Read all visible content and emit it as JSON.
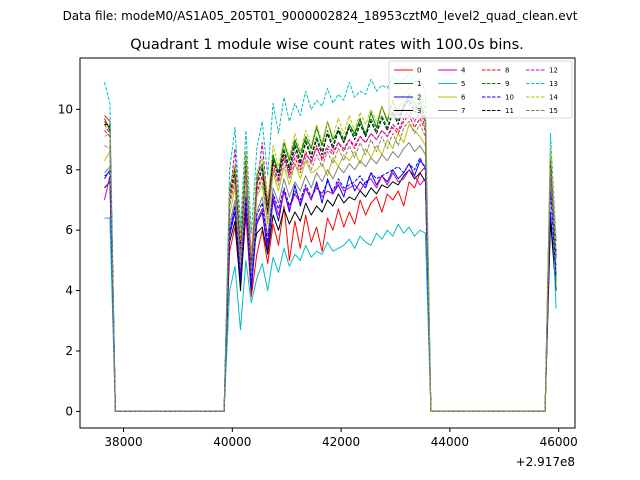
{
  "header": {
    "suptitle": "Data file: modeM0/AS1A05_205T01_9000002824_18953cztM0_level2_quad_clean.evt"
  },
  "chart_data": {
    "type": "line",
    "title": "Quadrant 1 module wise count rates with 100.0s bins.",
    "xlabel": "",
    "ylabel": "",
    "x_offset_label": "+2.917e8",
    "xlim": [
      37200,
      46300
    ],
    "ylim": [
      -0.55,
      11.7
    ],
    "x_ticks": [
      38000,
      40000,
      42000,
      44000,
      46000
    ],
    "x_tick_labels": [
      "38000",
      "40000",
      "42000",
      "44000",
      "46000"
    ],
    "y_ticks": [
      0,
      2,
      4,
      6,
      8,
      10
    ],
    "y_tick_labels": [
      "0",
      "2",
      "4",
      "6",
      "8",
      "10"
    ],
    "legend": {
      "placement": "top-right",
      "columns": 4
    },
    "segments": [
      {
        "x_start": 37650,
        "x_end": 37850,
        "x_step": 100
      },
      {
        "x_start": 37850,
        "x_end": 39850,
        "x_step": 100,
        "note": "zero gap"
      },
      {
        "x_start": 39850,
        "x_end": 43550,
        "x_step": 100
      },
      {
        "x_start": 43550,
        "x_end": 45750,
        "x_step": 100,
        "note": "zero gap"
      },
      {
        "x_start": 45750,
        "x_end": 45950,
        "x_step": 100
      }
    ],
    "series": [
      {
        "name": "0",
        "color": "#ff0000",
        "style": "solid",
        "start": [
          9.8,
          9.6,
          0.0
        ],
        "mid": [
          0.0,
          5.3,
          6.1,
          4.2,
          6.5,
          3.8,
          5.2,
          6.0,
          4.9,
          6.2,
          5.5,
          6.8,
          5.0,
          6.3,
          5.4,
          6.5,
          5.6,
          6.1,
          5.3,
          6.4,
          6.0,
          6.7,
          6.1,
          6.6,
          6.2,
          7.0,
          6.5,
          6.9,
          7.1,
          6.6,
          7.2,
          7.0,
          7.3,
          6.8,
          7.6,
          7.4,
          7.9,
          8.1,
          0.0
        ],
        "end": [
          0.0,
          8.3,
          4.0
        ]
      },
      {
        "name": "1",
        "color": "#008000",
        "style": "solid",
        "start": [
          9.7,
          9.3,
          0.0
        ],
        "mid": [
          0.0,
          7.4,
          8.1,
          5.6,
          8.6,
          4.9,
          7.8,
          8.2,
          6.8,
          8.5,
          7.9,
          8.9,
          8.3,
          9.0,
          8.5,
          9.1,
          8.7,
          9.4,
          8.8,
          9.6,
          9.0,
          9.3,
          8.9,
          9.5,
          9.2,
          9.7,
          9.1,
          9.9,
          9.4,
          10.1,
          9.6,
          10.3,
          9.8,
          10.0,
          10.5,
          10.2,
          9.9,
          9.6,
          0.0
        ],
        "end": [
          0.0,
          8.6,
          4.3
        ]
      },
      {
        "name": "2",
        "color": "#0000ff",
        "style": "solid",
        "start": [
          7.7,
          8.0,
          0.0
        ],
        "mid": [
          0.0,
          5.8,
          6.6,
          4.3,
          6.9,
          4.0,
          6.2,
          6.6,
          5.3,
          7.0,
          6.3,
          7.3,
          6.6,
          7.5,
          6.8,
          7.4,
          7.0,
          7.6,
          6.9,
          7.7,
          7.2,
          7.5,
          7.1,
          7.8,
          7.3,
          7.6,
          7.4,
          7.9,
          7.5,
          7.8,
          7.6,
          8.0,
          7.7,
          7.9,
          8.2,
          7.8,
          8.3,
          8.1,
          0.0
        ],
        "end": [
          0.0,
          6.6,
          4.0
        ]
      },
      {
        "name": "3",
        "color": "#000000",
        "style": "solid",
        "start": [
          7.4,
          7.6,
          0.0
        ],
        "mid": [
          0.0,
          5.6,
          6.3,
          4.0,
          6.7,
          5.0,
          5.9,
          6.1,
          5.2,
          6.5,
          6.0,
          6.7,
          6.2,
          6.6,
          6.3,
          6.9,
          6.5,
          6.8,
          6.6,
          7.0,
          6.8,
          7.2,
          6.9,
          7.1,
          7.0,
          7.3,
          7.1,
          7.4,
          7.2,
          7.5,
          7.4,
          7.6,
          7.5,
          7.8,
          8.0,
          7.7,
          7.9,
          7.6,
          0.0
        ],
        "end": [
          0.0,
          6.3,
          4.0
        ]
      },
      {
        "name": "4",
        "color": "#bf00bf",
        "style": "solid",
        "start": [
          7.0,
          7.8,
          0.0
        ],
        "mid": [
          0.0,
          5.9,
          6.8,
          4.5,
          7.0,
          4.3,
          6.3,
          6.7,
          5.5,
          7.1,
          6.5,
          7.3,
          6.7,
          7.2,
          6.9,
          7.4,
          7.0,
          7.5,
          7.1,
          7.3,
          7.2,
          7.6,
          7.3,
          7.4,
          7.5,
          7.3,
          7.6,
          7.7,
          7.4,
          7.8,
          7.5,
          7.9,
          7.6,
          7.7,
          8.0,
          7.8,
          7.5,
          7.7,
          0.0
        ],
        "end": [
          0.0,
          7.5,
          4.8
        ]
      },
      {
        "name": "5",
        "color": "#00bfbf",
        "style": "solid",
        "start": [
          6.4,
          6.4,
          0.0
        ],
        "mid": [
          0.0,
          4.0,
          4.8,
          2.7,
          5.0,
          3.6,
          4.4,
          4.9,
          4.0,
          5.1,
          4.6,
          5.4,
          4.8,
          5.2,
          5.0,
          5.5,
          5.1,
          5.3,
          5.2,
          5.6,
          5.3,
          5.4,
          5.5,
          5.7,
          5.4,
          5.8,
          5.6,
          5.5,
          5.9,
          5.7,
          6.0,
          5.8,
          6.2,
          5.9,
          6.1,
          5.8,
          6.0,
          5.9,
          0.0
        ],
        "end": [
          0.0,
          8.5,
          3.4
        ]
      },
      {
        "name": "6",
        "color": "#bfbf00",
        "style": "solid",
        "start": [
          8.3,
          8.6,
          0.0
        ],
        "mid": [
          0.0,
          6.5,
          7.4,
          5.0,
          7.8,
          4.6,
          7.1,
          7.5,
          6.2,
          7.9,
          7.3,
          8.1,
          7.5,
          8.2,
          7.7,
          8.3,
          7.9,
          8.0,
          8.2,
          7.8,
          8.4,
          8.1,
          8.5,
          8.3,
          8.6,
          8.2,
          8.7,
          8.4,
          8.8,
          8.5,
          9.0,
          8.7,
          9.2,
          8.9,
          9.5,
          9.3,
          9.1,
          8.8,
          0.0
        ],
        "end": [
          0.0,
          8.0,
          5.0
        ]
      },
      {
        "name": "7",
        "color": "#808080",
        "style": "solid",
        "start": [
          7.9,
          8.1,
          0.0
        ],
        "mid": [
          0.0,
          6.2,
          7.0,
          4.7,
          7.3,
          4.4,
          6.6,
          7.1,
          5.8,
          7.4,
          6.9,
          7.7,
          7.1,
          7.6,
          7.3,
          7.8,
          7.4,
          7.9,
          7.6,
          8.0,
          7.7,
          8.1,
          7.9,
          8.2,
          8.0,
          8.3,
          8.1,
          8.4,
          8.2,
          8.5,
          8.3,
          8.6,
          8.4,
          8.7,
          8.9,
          8.6,
          8.8,
          8.5,
          0.0
        ],
        "end": [
          0.0,
          7.7,
          4.6
        ]
      },
      {
        "name": "8",
        "color": "#ff0000",
        "style": "dashed",
        "start": [
          9.5,
          9.2,
          0.0
        ],
        "mid": [
          0.0,
          6.9,
          7.7,
          5.2,
          8.0,
          4.8,
          7.3,
          7.8,
          6.5,
          8.2,
          7.6,
          8.5,
          7.8,
          8.4,
          8.0,
          8.6,
          8.2,
          8.8,
          8.3,
          8.7,
          8.5,
          8.9,
          8.6,
          9.0,
          8.7,
          9.1,
          8.9,
          9.2,
          9.0,
          9.3,
          9.1,
          9.4,
          9.2,
          9.6,
          9.8,
          9.4,
          9.7,
          9.3,
          0.0
        ],
        "end": [
          0.0,
          8.1,
          5.2
        ]
      },
      {
        "name": "9",
        "color": "#008000",
        "style": "dashed",
        "start": [
          9.6,
          9.4,
          0.0
        ],
        "mid": [
          0.0,
          7.2,
          8.0,
          5.4,
          8.3,
          5.0,
          7.6,
          8.1,
          6.7,
          8.4,
          7.9,
          8.7,
          8.1,
          8.9,
          8.3,
          9.0,
          8.5,
          9.1,
          8.6,
          9.3,
          8.8,
          9.4,
          9.0,
          9.5,
          9.1,
          9.6,
          9.2,
          9.7,
          9.3,
          9.8,
          9.4,
          10.0,
          9.6,
          10.2,
          10.4,
          10.0,
          10.3,
          9.7,
          0.0
        ],
        "end": [
          0.0,
          8.4,
          5.3
        ]
      },
      {
        "name": "10",
        "color": "#0000ff",
        "style": "dashed",
        "start": [
          7.8,
          7.9,
          0.0
        ],
        "mid": [
          0.0,
          6.0,
          6.8,
          4.4,
          7.1,
          4.2,
          6.5,
          6.9,
          5.6,
          7.2,
          6.7,
          7.4,
          6.8,
          7.3,
          7.0,
          7.5,
          7.1,
          7.4,
          7.2,
          7.6,
          7.3,
          7.7,
          7.4,
          7.5,
          7.6,
          7.8,
          7.5,
          7.9,
          7.7,
          7.8,
          7.9,
          8.0,
          8.1,
          7.9,
          8.2,
          8.0,
          8.4,
          8.0,
          0.0
        ],
        "end": [
          0.0,
          7.3,
          4.5
        ]
      },
      {
        "name": "11",
        "color": "#000000",
        "style": "dashed",
        "start": [
          9.5,
          9.5,
          0.0
        ],
        "mid": [
          0.0,
          7.1,
          7.9,
          5.3,
          8.2,
          4.9,
          7.5,
          8.0,
          6.6,
          8.3,
          7.8,
          8.6,
          8.0,
          8.8,
          8.2,
          8.9,
          8.4,
          9.0,
          8.5,
          9.2,
          8.7,
          9.3,
          8.9,
          9.4,
          9.0,
          9.5,
          9.1,
          9.6,
          9.2,
          9.7,
          9.3,
          9.9,
          9.5,
          10.1,
          10.3,
          9.9,
          10.2,
          9.6,
          0.0
        ],
        "end": [
          0.0,
          8.3,
          5.1
        ]
      },
      {
        "name": "12",
        "color": "#bf00bf",
        "style": "dashed",
        "start": [
          9.3,
          9.1,
          0.0
        ],
        "mid": [
          0.0,
          7.0,
          8.7,
          5.5,
          8.1,
          5.1,
          7.4,
          8.9,
          6.9,
          8.0,
          7.7,
          8.4,
          7.9,
          8.6,
          8.1,
          8.5,
          8.3,
          8.7,
          8.4,
          8.8,
          8.6,
          8.9,
          8.7,
          9.0,
          8.8,
          9.1,
          8.9,
          9.2,
          9.0,
          9.3,
          9.1,
          9.5,
          9.3,
          9.7,
          10.0,
          9.6,
          9.9,
          9.4,
          0.0
        ],
        "end": [
          0.0,
          8.0,
          5.6
        ]
      },
      {
        "name": "13",
        "color": "#00bfbf",
        "style": "dashed",
        "start": [
          10.9,
          10.2,
          0.0
        ],
        "mid": [
          0.0,
          8.0,
          9.4,
          6.1,
          9.3,
          5.9,
          8.7,
          9.6,
          7.8,
          10.2,
          9.2,
          10.4,
          9.6,
          10.2,
          9.8,
          10.6,
          10.0,
          10.3,
          10.1,
          10.7,
          10.2,
          10.5,
          10.3,
          10.9,
          10.4,
          10.6,
          10.5,
          11.0,
          10.6,
          10.8,
          10.7,
          11.1,
          10.8,
          11.0,
          11.2,
          10.9,
          11.0,
          10.6,
          0.0
        ],
        "end": [
          0.0,
          9.2,
          5.7
        ]
      },
      {
        "name": "14",
        "color": "#bfbf00",
        "style": "dashed",
        "start": [
          9.1,
          9.2,
          0.0
        ],
        "mid": [
          0.0,
          7.3,
          8.2,
          5.7,
          8.6,
          5.2,
          7.9,
          8.4,
          7.0,
          8.8,
          8.1,
          9.0,
          8.4,
          9.2,
          8.6,
          9.3,
          8.8,
          9.5,
          8.9,
          9.6,
          9.1,
          9.7,
          9.2,
          9.8,
          9.3,
          9.9,
          9.5,
          10.0,
          9.6,
          10.1,
          9.7,
          10.3,
          9.9,
          10.5,
          10.7,
          10.3,
          10.6,
          10.0,
          0.0
        ],
        "end": [
          0.0,
          8.7,
          5.4
        ]
      },
      {
        "name": "15",
        "color": "#808080",
        "style": "dashed",
        "start": [
          8.8,
          8.7,
          0.0
        ],
        "mid": [
          0.0,
          6.8,
          7.6,
          5.1,
          7.9,
          4.7,
          7.2,
          7.7,
          6.4,
          8.0,
          7.5,
          8.3,
          7.7,
          8.2,
          7.9,
          8.4,
          8.0,
          8.5,
          8.1,
          8.6,
          8.2,
          8.7,
          8.3,
          8.8,
          8.4,
          8.9,
          8.5,
          9.0,
          8.6,
          9.1,
          8.7,
          9.2,
          8.8,
          9.4,
          9.6,
          9.2,
          9.5,
          9.1,
          0.0
        ],
        "end": [
          0.0,
          7.9,
          5.0
        ]
      }
    ]
  }
}
